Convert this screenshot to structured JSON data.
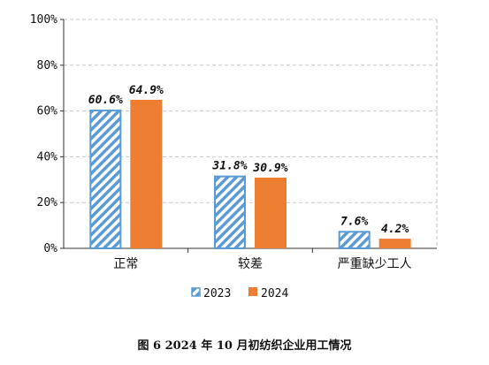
{
  "chart_data": {
    "type": "bar",
    "categories": [
      "正常",
      "较差",
      "严重缺少工人"
    ],
    "series": [
      {
        "name": "2023",
        "values": [
          60.6,
          31.8,
          7.6
        ],
        "labels": [
          "60.6%",
          "31.8%",
          "7.6%"
        ],
        "color": "#5B9BD5",
        "pattern": "diagonal-hatch"
      },
      {
        "name": "2024",
        "values": [
          64.9,
          30.9,
          4.2
        ],
        "labels": [
          "64.9%",
          "30.9%",
          "4.2%"
        ],
        "color": "#ED7D31",
        "pattern": "solid"
      }
    ],
    "ylim": [
      0,
      100
    ],
    "yticks": [
      "0%",
      "20%",
      "40%",
      "60%",
      "80%",
      "100%"
    ],
    "grid": true,
    "legend_position": "bottom",
    "xlabel": "",
    "ylabel": ""
  },
  "caption": "图 6   2024 年 10 月初纺织企业用工情况"
}
